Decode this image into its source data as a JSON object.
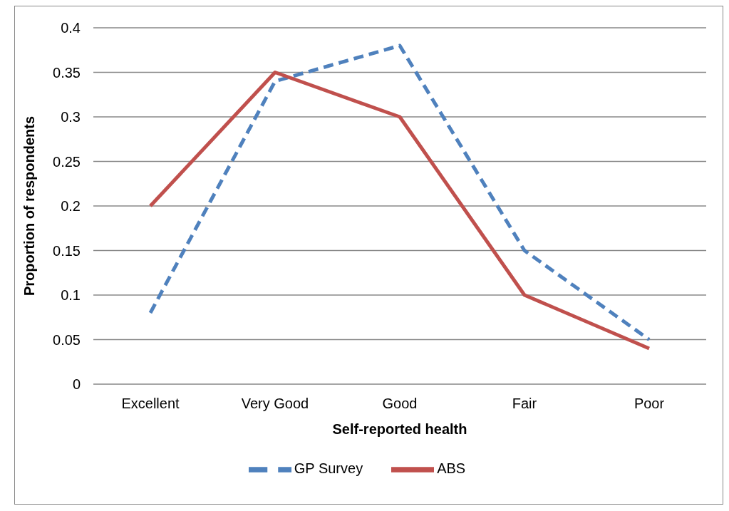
{
  "chart_data": {
    "type": "line",
    "xlabel": "Self-reported health",
    "ylabel": "Proportion of respondents",
    "categories": [
      "Excellent",
      "Very Good",
      "Good",
      "Fair",
      "Poor"
    ],
    "series": [
      {
        "name": "GP Survey",
        "color": "#4f81bd",
        "values": [
          0.08,
          0.34,
          0.38,
          0.15,
          0.05
        ],
        "line_style": "dashed"
      },
      {
        "name": "ABS",
        "color": "#c0504d",
        "values": [
          0.2,
          0.35,
          0.3,
          0.1,
          0.04
        ],
        "line_style": "solid"
      }
    ],
    "ylim": [
      0,
      0.4
    ],
    "yticks": [
      0,
      0.05,
      0.1,
      0.15,
      0.2,
      0.25,
      0.3,
      0.35,
      0.4
    ],
    "grid": "y",
    "legend": "bottom",
    "marker": "none"
  }
}
